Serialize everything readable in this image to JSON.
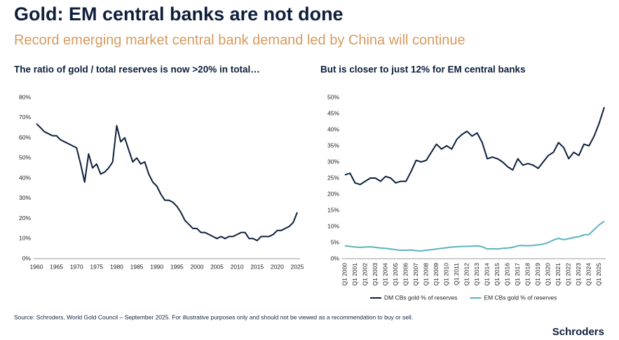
{
  "title": "Gold: EM central banks are not done",
  "subtitle": "Record emerging market central bank demand led by China will continue",
  "source": "Source: Schroders, World Gold Council – September 2025. For illustrative purposes only and should not be viewed as a recommendation to buy or sell.",
  "logo": "Schroders",
  "chart_data": [
    {
      "type": "line",
      "title": "The ratio of gold / total reserves is now >20% in total…",
      "color": "#0d1f3c",
      "x": [
        1960,
        1961,
        1962,
        1963,
        1964,
        1965,
        1966,
        1967,
        1968,
        1969,
        1970,
        1971,
        1972,
        1973,
        1974,
        1975,
        1976,
        1977,
        1978,
        1979,
        1980,
        1981,
        1982,
        1983,
        1984,
        1985,
        1986,
        1987,
        1988,
        1989,
        1990,
        1991,
        1992,
        1993,
        1994,
        1995,
        1996,
        1997,
        1998,
        1999,
        2000,
        2001,
        2002,
        2003,
        2004,
        2005,
        2006,
        2007,
        2008,
        2009,
        2010,
        2011,
        2012,
        2013,
        2014,
        2015,
        2016,
        2017,
        2018,
        2019,
        2020,
        2021,
        2022,
        2023,
        2024,
        2025
      ],
      "values": [
        67,
        65,
        63,
        62,
        61,
        61,
        59,
        58,
        57,
        56,
        55,
        47,
        38,
        52,
        45,
        47,
        42,
        43,
        45,
        48,
        66,
        58,
        60,
        54,
        48,
        50,
        47,
        48,
        42,
        38,
        36,
        32,
        29,
        29,
        28,
        26,
        23,
        19,
        17,
        15,
        15,
        13,
        13,
        12,
        11,
        10,
        11,
        10,
        11,
        11,
        12,
        13,
        13,
        10,
        10,
        9,
        11,
        11,
        11,
        12,
        14,
        14,
        15,
        16,
        18,
        23
      ],
      "xlim": [
        1960,
        2025
      ],
      "xticks": [
        1960,
        1965,
        1970,
        1975,
        1980,
        1985,
        1990,
        1995,
        2000,
        2005,
        2010,
        2015,
        2020,
        2025
      ],
      "ylim": [
        0,
        80
      ],
      "yticks": [
        {
          "value": 0,
          "label": "0%"
        },
        {
          "value": 10,
          "label": "10%"
        },
        {
          "value": 20,
          "label": "20%"
        },
        {
          "value": 30,
          "label": "30%"
        },
        {
          "value": 40,
          "label": "40%"
        },
        {
          "value": 50,
          "label": "50%"
        },
        {
          "value": 60,
          "label": "60%"
        },
        {
          "value": 70,
          "label": "70%"
        },
        {
          "value": 80,
          "label": "80%"
        }
      ]
    },
    {
      "type": "line",
      "title": "But is closer to just 12% for EM central banks",
      "categories": [
        "Q1 2000",
        null,
        "Q1 2001",
        null,
        "Q1 2002",
        null,
        "Q1 2003",
        null,
        "Q1 2004",
        null,
        "Q1 2005",
        null,
        "Q1 2006",
        null,
        "Q1 2007",
        null,
        "Q1 2008",
        null,
        "Q1 2009",
        null,
        "Q1 2010",
        null,
        "Q1 2011",
        null,
        "Q1 2012",
        null,
        "Q1 2013",
        null,
        "Q1 2014",
        null,
        "Q1 2015",
        null,
        "Q1 2016",
        null,
        "Q1 2017",
        null,
        "Q1 2018",
        null,
        "Q1 2019",
        null,
        "Q1 2020",
        null,
        "Q1 2021",
        null,
        "Q1 2022",
        null,
        "Q1 2023",
        null,
        "Q1 2024",
        null,
        "Q1 2025",
        null
      ],
      "series": [
        {
          "name": "DM CBs gold % of reserves",
          "color": "#0d1f3c",
          "values": [
            26,
            26.5,
            23.5,
            23,
            24,
            25,
            25,
            24,
            25.5,
            25,
            23.5,
            24,
            24,
            27,
            30.5,
            30,
            30.5,
            33,
            35.5,
            34,
            35,
            34,
            37,
            38.5,
            39.5,
            38,
            39,
            36,
            31,
            31.5,
            31,
            30,
            28.5,
            27.5,
            31,
            29,
            29.5,
            29,
            28,
            30,
            32,
            33,
            36,
            34.5,
            31,
            33,
            32,
            35.5,
            35,
            38,
            42,
            47
          ]
        },
        {
          "name": "EM CBs gold % of reserves",
          "color": "#5ab4c0",
          "values": [
            4,
            3.8,
            3.6,
            3.5,
            3.6,
            3.7,
            3.5,
            3.3,
            3.2,
            3.0,
            2.8,
            2.6,
            2.6,
            2.7,
            2.5,
            2.4,
            2.6,
            2.8,
            3.0,
            3.2,
            3.4,
            3.6,
            3.7,
            3.8,
            3.8,
            3.9,
            4.0,
            3.7,
            3.0,
            3.1,
            3.0,
            3.2,
            3.3,
            3.5,
            4.0,
            4.1,
            4.0,
            4.1,
            4.3,
            4.5,
            5.0,
            5.8,
            6.3,
            5.9,
            6.2,
            6.6,
            6.8,
            7.4,
            7.5,
            9.0,
            10.5,
            11.6
          ]
        }
      ],
      "ylim": [
        0,
        50
      ],
      "yticks": [
        {
          "value": 0,
          "label": "0%"
        },
        {
          "value": 5,
          "label": "5%"
        },
        {
          "value": 10,
          "label": "10%"
        },
        {
          "value": 15,
          "label": "15%"
        },
        {
          "value": 20,
          "label": "20%"
        },
        {
          "value": 25,
          "label": "25%"
        },
        {
          "value": 30,
          "label": "30%"
        },
        {
          "value": 35,
          "label": "35%"
        },
        {
          "value": 40,
          "label": "40%"
        },
        {
          "value": 45,
          "label": "45%"
        },
        {
          "value": 50,
          "label": "50%"
        }
      ]
    }
  ]
}
